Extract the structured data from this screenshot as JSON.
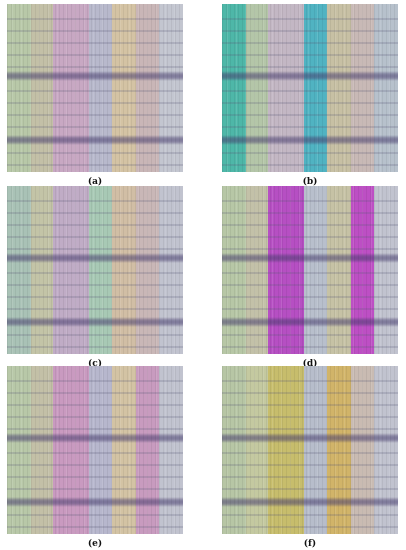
{
  "figure": {
    "panels": [
      {
        "id": "a",
        "caption": "(a)",
        "stripe_colors": [
          "#b8c8a8",
          "#c3c0a7",
          "#c8a8c3",
          "#b8b9cc",
          "#d4c3a4",
          "#c9b6b7",
          "#c3c6d0"
        ]
      },
      {
        "id": "b",
        "caption": "(b)",
        "stripe_colors": [
          "#4eb7a8",
          "#b4c6a8",
          "#c3b7c4",
          "#50b3c2",
          "#c7c0a4",
          "#c8b9b6",
          "#b7c1cc"
        ]
      },
      {
        "id": "c",
        "caption": "(c)",
        "stripe_colors": [
          "#a9c2b6",
          "#c3c4a7",
          "#c0acc6",
          "#a8c9b5",
          "#d1bea5",
          "#c9b7b7",
          "#c1c3cf"
        ]
      },
      {
        "id": "d",
        "caption": "(d)",
        "stripe_colors": [
          "#b7c7a6",
          "#c3c1a8",
          "#b64fc3",
          "#b8bfcc",
          "#c6c2a5",
          "#bd4fc4",
          "#c1c3cf"
        ]
      },
      {
        "id": "e",
        "caption": "(e)",
        "stripe_colors": [
          "#b8c8a8",
          "#c3c0a7",
          "#c99ac0",
          "#b7b7cd",
          "#d3c3a4",
          "#c89bbf",
          "#c1c3cf"
        ]
      },
      {
        "id": "f",
        "caption": "(f)",
        "stripe_colors": [
          "#b7c6a5",
          "#c4c9a0",
          "#c7bd6c",
          "#b7bdcb",
          "#d1b469",
          "#c9bbb2",
          "#c1c3cf"
        ]
      }
    ]
  }
}
